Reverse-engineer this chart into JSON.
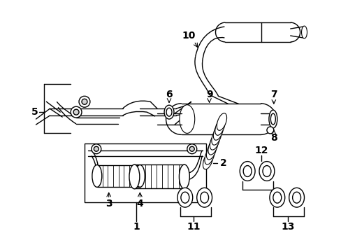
{
  "bg_color": "#ffffff",
  "line_color": "#000000",
  "label_fontsize": 10,
  "fig_width": 4.89,
  "fig_height": 3.6,
  "dpi": 100
}
